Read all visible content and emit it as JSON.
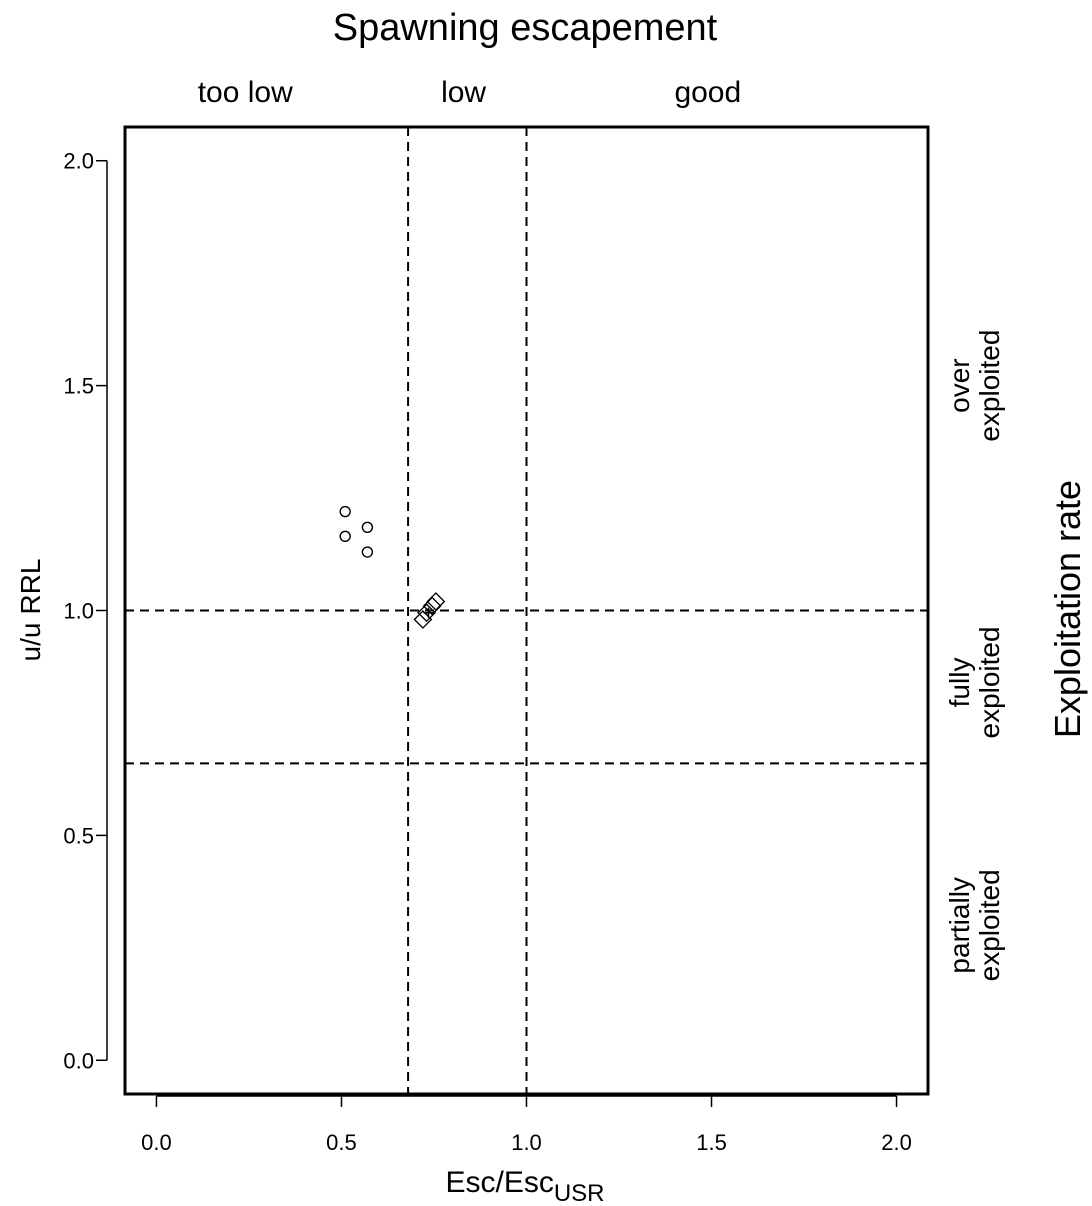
{
  "chart_data": {
    "type": "scatter",
    "title": "Spawning escapement",
    "xlabel": {
      "main": "Esc/Esc",
      "sub": "USR"
    },
    "ylabel": {
      "main": "u/u",
      "sub": "RRL"
    },
    "right_label": "Exploitation rate",
    "xlim": [
      -0.085,
      2.085
    ],
    "ylim": [
      -0.075,
      2.075
    ],
    "xticks": [
      "0.0",
      "0.5",
      "1.0",
      "1.5",
      "2.0"
    ],
    "yticks": [
      "0.0",
      "0.5",
      "1.0",
      "1.5",
      "2.0"
    ],
    "grid": false,
    "reference_lines": {
      "vertical": [
        0.68,
        1.0
      ],
      "horizontal": [
        0.66,
        1.0
      ],
      "style": "dashed"
    },
    "top_zones": [
      {
        "label": "too low",
        "x": 0.24
      },
      {
        "label": "low",
        "x": 0.83
      },
      {
        "label": "good",
        "x": 1.49
      }
    ],
    "right_zones": [
      {
        "lines": [
          "over",
          "exploited"
        ],
        "y": 1.5
      },
      {
        "lines": [
          "fully",
          "exploited"
        ],
        "y": 0.84
      },
      {
        "lines": [
          "partially",
          "exploited"
        ],
        "y": 0.3
      }
    ],
    "series": [
      {
        "marker": "circle",
        "points": [
          [
            0.51,
            1.22
          ],
          [
            0.51,
            1.165
          ],
          [
            0.57,
            1.185
          ],
          [
            0.57,
            1.13
          ]
        ]
      },
      {
        "marker": "diamond",
        "points": [
          [
            0.72,
            0.98
          ],
          [
            0.73,
            0.995
          ],
          [
            0.745,
            1.01
          ],
          [
            0.755,
            1.02
          ]
        ]
      },
      {
        "marker": "plus",
        "points": [
          [
            0.735,
            0.995
          ]
        ]
      }
    ]
  }
}
